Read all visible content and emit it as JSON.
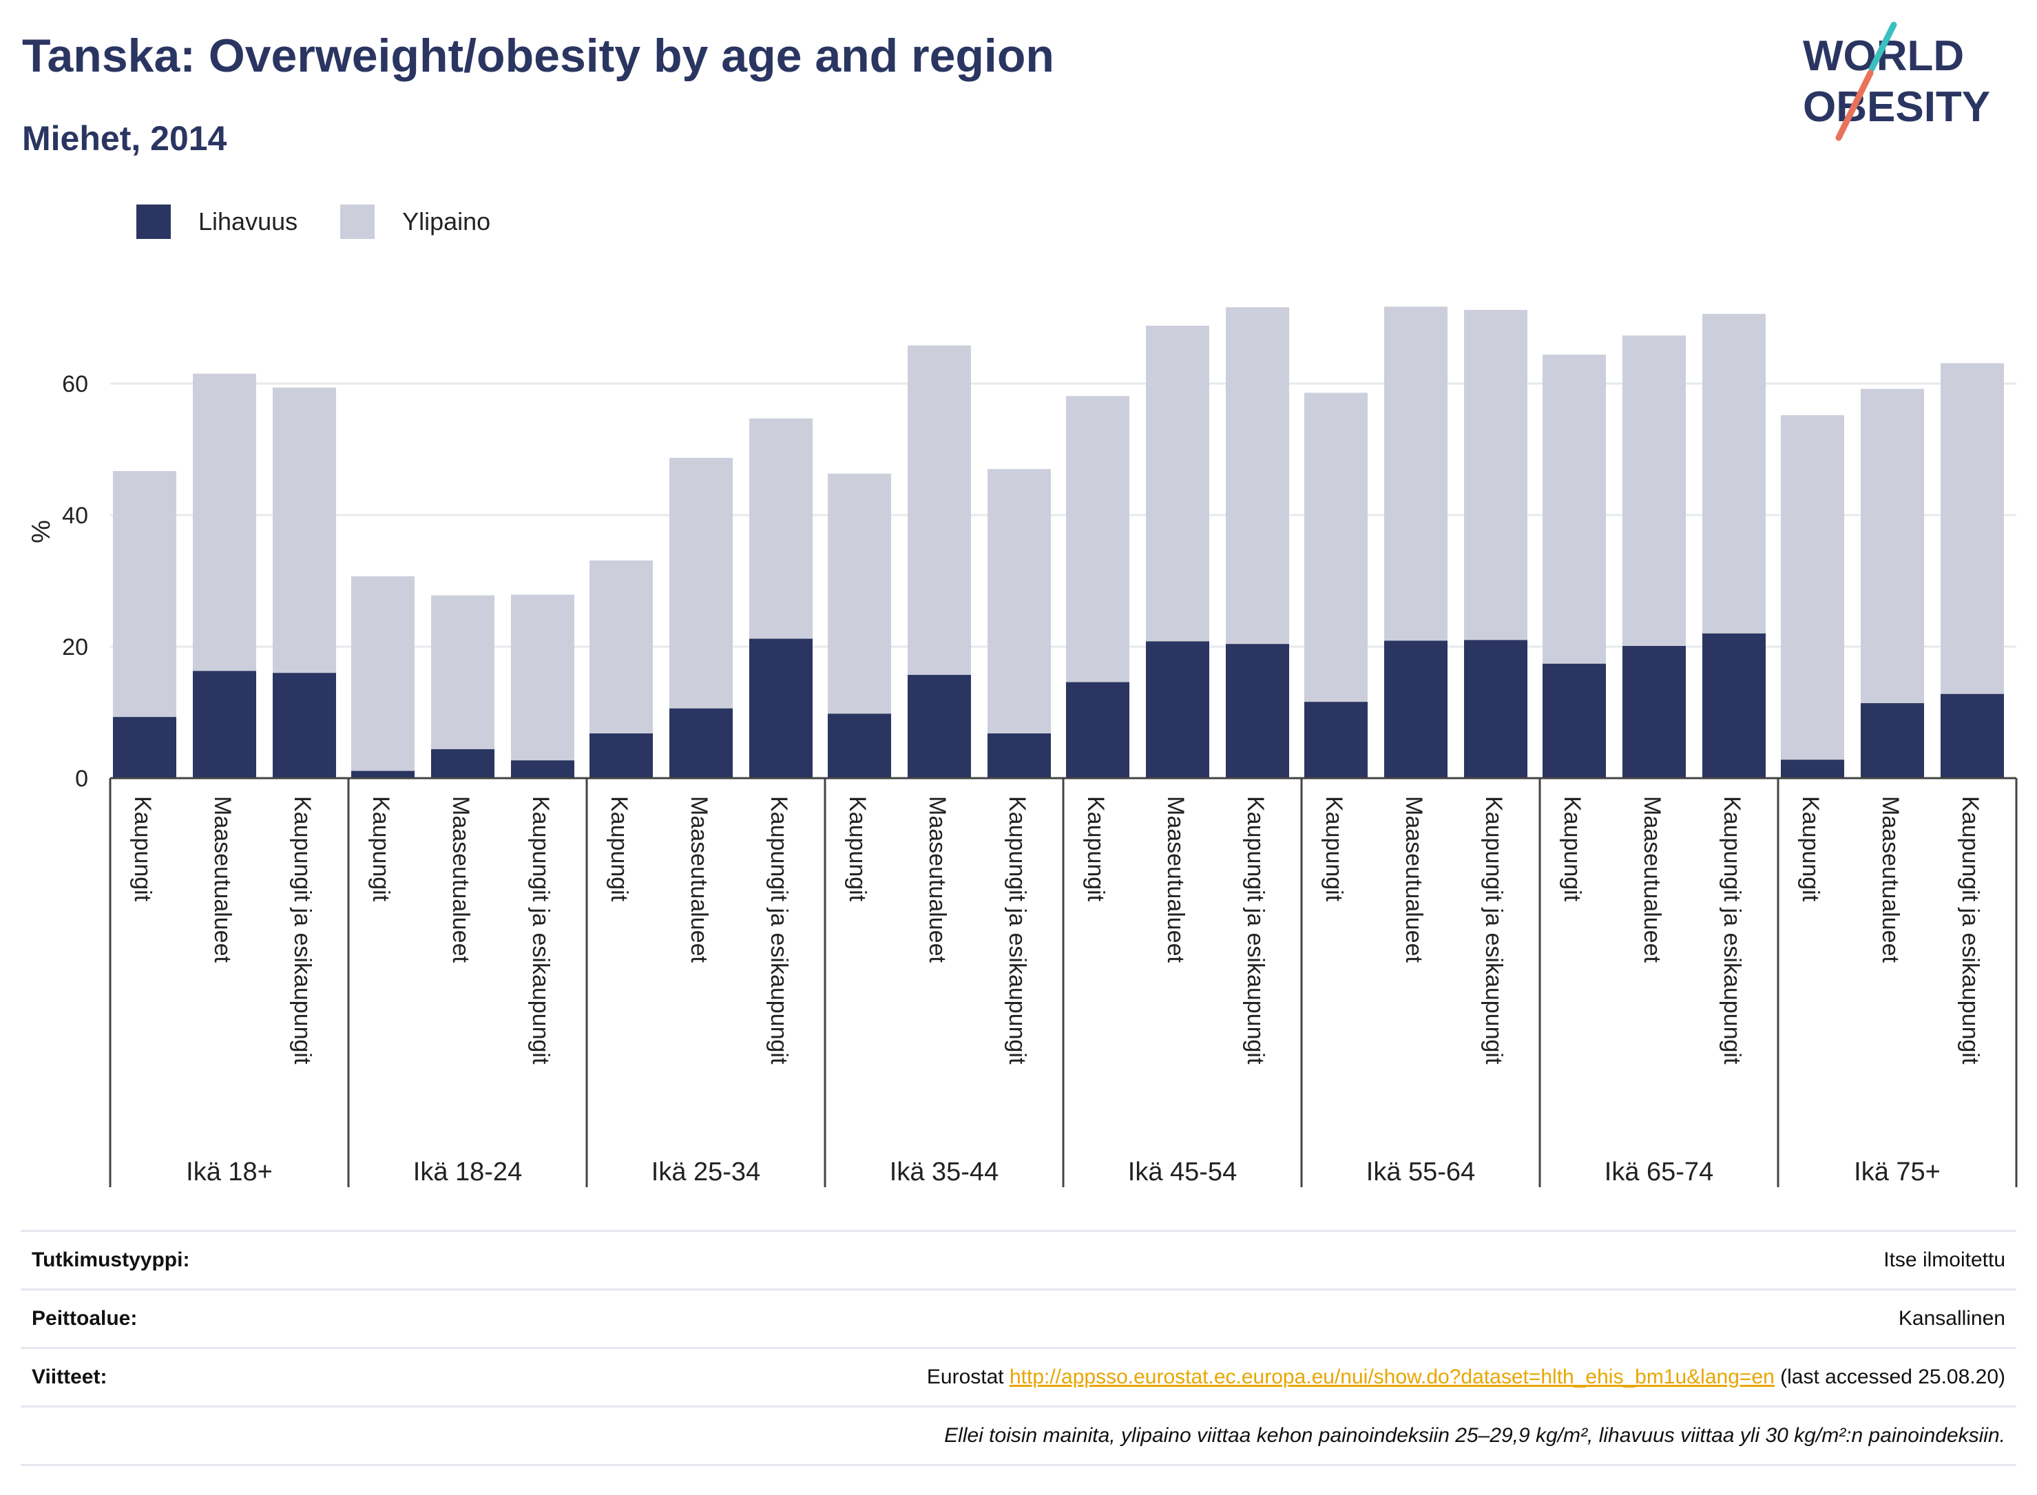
{
  "header": {
    "title": "Tanska: Overweight/obesity by age and region",
    "subtitle": "Miehet, 2014"
  },
  "logo": {
    "line1": "WORLD",
    "line2": "OBESITY"
  },
  "colors": {
    "obesity": "#2a3561",
    "overweight": "#cccfdb",
    "grid": "#e8e9ee",
    "axis": "#444444",
    "link": "#e8a600",
    "logo_teal": "#3bbfbf",
    "logo_coral": "#e8735a"
  },
  "chart_data": {
    "type": "bar",
    "stacked": true,
    "ylabel": "%",
    "ylim": [
      0,
      75
    ],
    "yticks": [
      0,
      20,
      40,
      60
    ],
    "grid": true,
    "legend_position": "top-left",
    "series_names": [
      "Lihavuus",
      "Ylipaino"
    ],
    "groups": [
      {
        "label": "Ikä 18+",
        "categories": [
          "Kaupungit",
          "Maaseutualueet",
          "Kaupungit ja esikaupungit"
        ],
        "lihavuus": [
          9.3,
          16.3,
          16.0
        ],
        "total": [
          46.7,
          61.5,
          59.4
        ]
      },
      {
        "label": "Ikä 18-24",
        "categories": [
          "Kaupungit",
          "Maaseutualueet",
          "Kaupungit ja esikaupungit"
        ],
        "lihavuus": [
          1.1,
          4.4,
          2.7
        ],
        "total": [
          30.7,
          27.8,
          27.9
        ]
      },
      {
        "label": "Ikä 25-34",
        "categories": [
          "Kaupungit",
          "Maaseutualueet",
          "Kaupungit ja esikaupungit"
        ],
        "lihavuus": [
          6.8,
          10.6,
          21.2
        ],
        "total": [
          33.1,
          48.7,
          54.7
        ]
      },
      {
        "label": "Ikä 35-44",
        "categories": [
          "Kaupungit",
          "Maaseutualueet",
          "Kaupungit ja esikaupungit"
        ],
        "lihavuus": [
          9.8,
          15.7,
          6.8
        ],
        "total": [
          46.3,
          65.8,
          47.0
        ]
      },
      {
        "label": "Ikä 45-54",
        "categories": [
          "Kaupungit",
          "Maaseutualueet",
          "Kaupungit ja esikaupungit"
        ],
        "lihavuus": [
          14.6,
          20.8,
          20.4
        ],
        "total": [
          58.1,
          68.8,
          71.6
        ]
      },
      {
        "label": "Ikä 55-64",
        "categories": [
          "Kaupungit",
          "Maaseutualueet",
          "Kaupungit ja esikaupungit"
        ],
        "lihavuus": [
          11.6,
          20.9,
          21.0
        ],
        "total": [
          58.6,
          71.7,
          71.2
        ]
      },
      {
        "label": "Ikä 65-74",
        "categories": [
          "Kaupungit",
          "Maaseutualueet",
          "Kaupungit ja esikaupungit"
        ],
        "lihavuus": [
          17.4,
          20.1,
          22.0
        ],
        "total": [
          64.4,
          67.3,
          70.6
        ]
      },
      {
        "label": "Ikä 75+",
        "categories": [
          "Kaupungit",
          "Maaseutualueet",
          "Kaupungit ja esikaupungit"
        ],
        "lihavuus": [
          2.8,
          11.4,
          12.8
        ],
        "total": [
          55.2,
          59.2,
          63.1
        ]
      }
    ]
  },
  "info": {
    "study_type_label": "Tutkimustyyppi:",
    "study_type_value": "Itse ilmoitettu",
    "coverage_label": "Peittoalue:",
    "coverage_value": "Kansallinen",
    "references_label": "Viitteet:",
    "references_prefix": "Eurostat",
    "references_link": "http://appsso.eurostat.ec.europa.eu/nui/show.do?dataset=hlth_ehis_bm1u&lang=en",
    "references_suffix": "(last accessed 25.08.20)",
    "note": "Ellei toisin mainita, ylipaino viittaa kehon painoindeksiin 25–29,9 kg/m², lihavuus viittaa yli 30 kg/m²:n painoindeksiin."
  }
}
